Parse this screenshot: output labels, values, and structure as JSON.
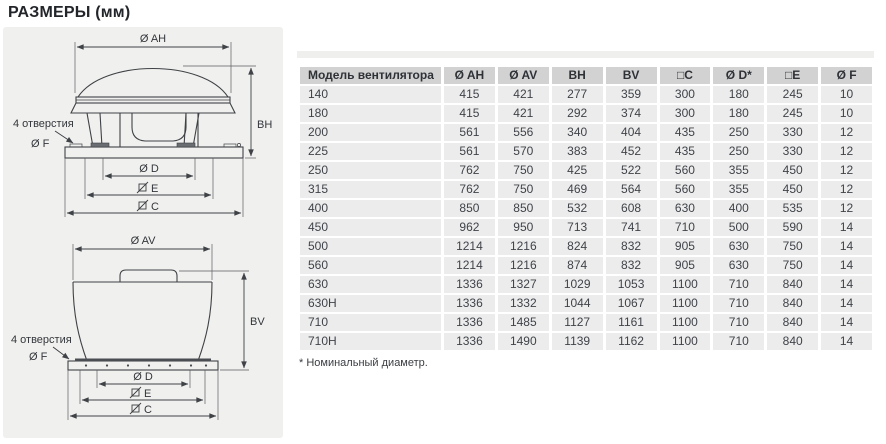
{
  "page": {
    "title": "РАЗМЕРЫ (мм)",
    "footnote": "* Номинальный диаметр."
  },
  "drawings": {
    "horizontal": {
      "labels": {
        "width": "Ø AH",
        "height": "BH",
        "holes": "4 отверстия",
        "hole_dia": "Ø F",
        "duct_dia": "Ø D",
        "sq_e": "E",
        "sq_c": "C"
      }
    },
    "vertical": {
      "labels": {
        "width": "Ø AV",
        "height": "BV",
        "holes": "4 отверстия",
        "hole_dia": "Ø F",
        "duct_dia": "Ø D",
        "sq_e": "E",
        "sq_c": "C"
      }
    }
  },
  "table": {
    "columns": [
      "Модель вентилятора",
      "Ø AH",
      "Ø AV",
      "BH",
      "BV",
      "□C",
      "Ø D*",
      "□E",
      "Ø F"
    ],
    "rows": [
      [
        "140",
        415,
        421,
        277,
        359,
        300,
        180,
        245,
        10
      ],
      [
        "180",
        415,
        421,
        292,
        374,
        300,
        180,
        245,
        10
      ],
      [
        "200",
        561,
        556,
        340,
        404,
        435,
        250,
        330,
        12
      ],
      [
        "225",
        561,
        570,
        383,
        452,
        435,
        250,
        330,
        12
      ],
      [
        "250",
        762,
        750,
        425,
        522,
        560,
        355,
        450,
        12
      ],
      [
        "315",
        762,
        750,
        469,
        564,
        560,
        355,
        450,
        12
      ],
      [
        "400",
        850,
        850,
        532,
        608,
        630,
        400,
        535,
        12
      ],
      [
        "450",
        962,
        950,
        713,
        741,
        710,
        500,
        590,
        14
      ],
      [
        "500",
        1214,
        1216,
        824,
        832,
        905,
        630,
        750,
        14
      ],
      [
        "560",
        1214,
        1216,
        874,
        832,
        905,
        630,
        750,
        14
      ],
      [
        "630",
        1336,
        1327,
        1029,
        1053,
        1100,
        710,
        840,
        14
      ],
      [
        "630H",
        1336,
        1332,
        1044,
        1067,
        1100,
        710,
        840,
        14
      ],
      [
        "710",
        1336,
        1485,
        1127,
        1161,
        1100,
        710,
        840,
        14
      ],
      [
        "710H",
        1336,
        1490,
        1139,
        1162,
        1100,
        710,
        840,
        14
      ]
    ]
  },
  "colors": {
    "header_bg": "#d2d2d2",
    "row_bg": "#ececec",
    "panel_bg": "#f0f0ee",
    "drawing_line": "#3f4246",
    "text": "#2e3237"
  }
}
